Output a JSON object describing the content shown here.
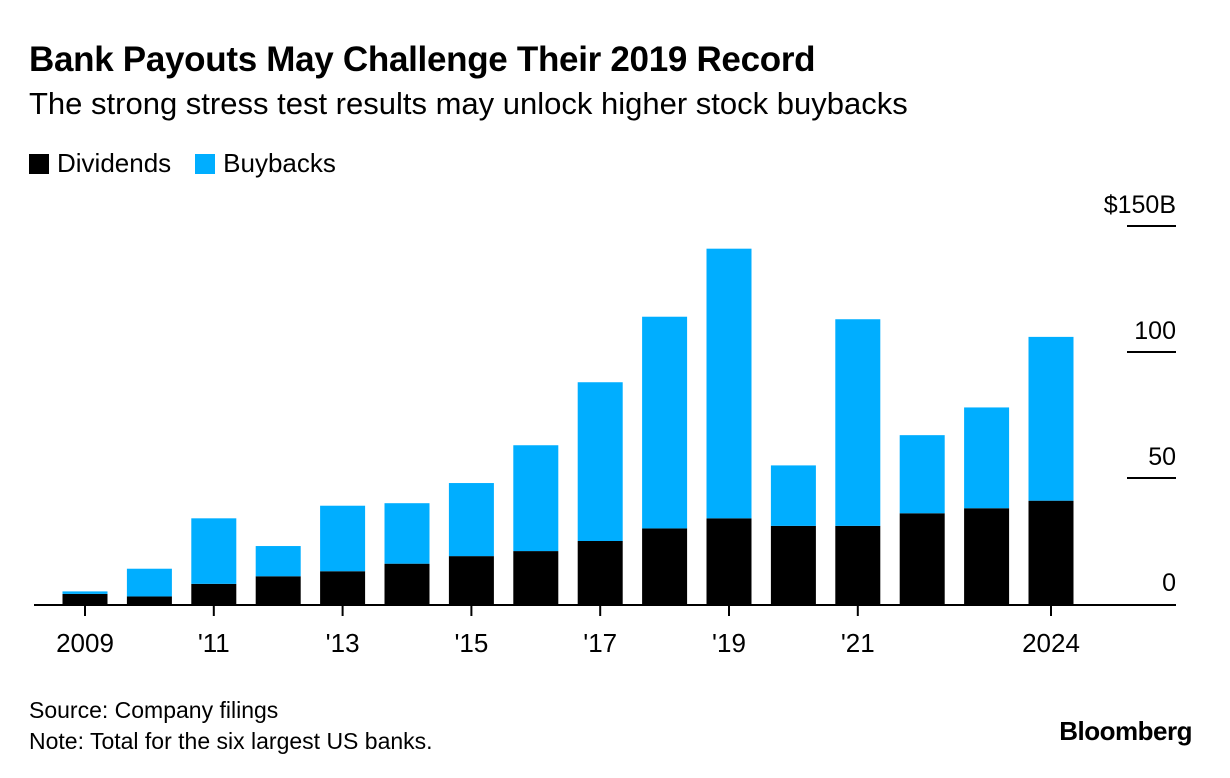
{
  "title": "Bank Payouts May Challenge Their 2019 Record",
  "subtitle": "The strong stress test results may unlock higher stock buybacks",
  "source": "Source: Company filings",
  "note": "Note: Total for the six largest US banks.",
  "brand": "Bloomberg",
  "colors": {
    "dividends": "#000000",
    "buybacks": "#00aeff",
    "axis": "#000000"
  },
  "chart_data": {
    "type": "bar",
    "stacked": true,
    "categories": [
      "2009",
      "2010",
      "2011",
      "2012",
      "2013",
      "2014",
      "2015",
      "2016",
      "2017",
      "2018",
      "2019",
      "2020",
      "2021",
      "2022",
      "2023",
      "2024"
    ],
    "series": [
      {
        "name": "Dividends",
        "values": [
          4,
          3,
          8,
          11,
          13,
          16,
          19,
          21,
          25,
          30,
          34,
          31,
          31,
          36,
          38,
          41
        ]
      },
      {
        "name": "Buybacks",
        "values": [
          1,
          11,
          26,
          12,
          26,
          24,
          29,
          42,
          63,
          84,
          107,
          24,
          82,
          31,
          40,
          65
        ]
      }
    ],
    "x_tick_labels": [
      {
        "category": "2009",
        "label": "2009"
      },
      {
        "category": "2011",
        "label": "'11"
      },
      {
        "category": "2013",
        "label": "'13"
      },
      {
        "category": "2015",
        "label": "'15"
      },
      {
        "category": "2017",
        "label": "'17"
      },
      {
        "category": "2019",
        "label": "'19"
      },
      {
        "category": "2021",
        "label": "'21"
      },
      {
        "category": "2024",
        "label": "2024"
      }
    ],
    "y_ticks": [
      {
        "value": 0,
        "label": "0"
      },
      {
        "value": 50,
        "label": "50"
      },
      {
        "value": 100,
        "label": "100"
      },
      {
        "value": 150,
        "label": "$150B"
      }
    ],
    "ylim": [
      0,
      150
    ],
    "legend_position": "top-left",
    "y_axis_side": "right",
    "xlabel": "",
    "ylabel": ""
  }
}
